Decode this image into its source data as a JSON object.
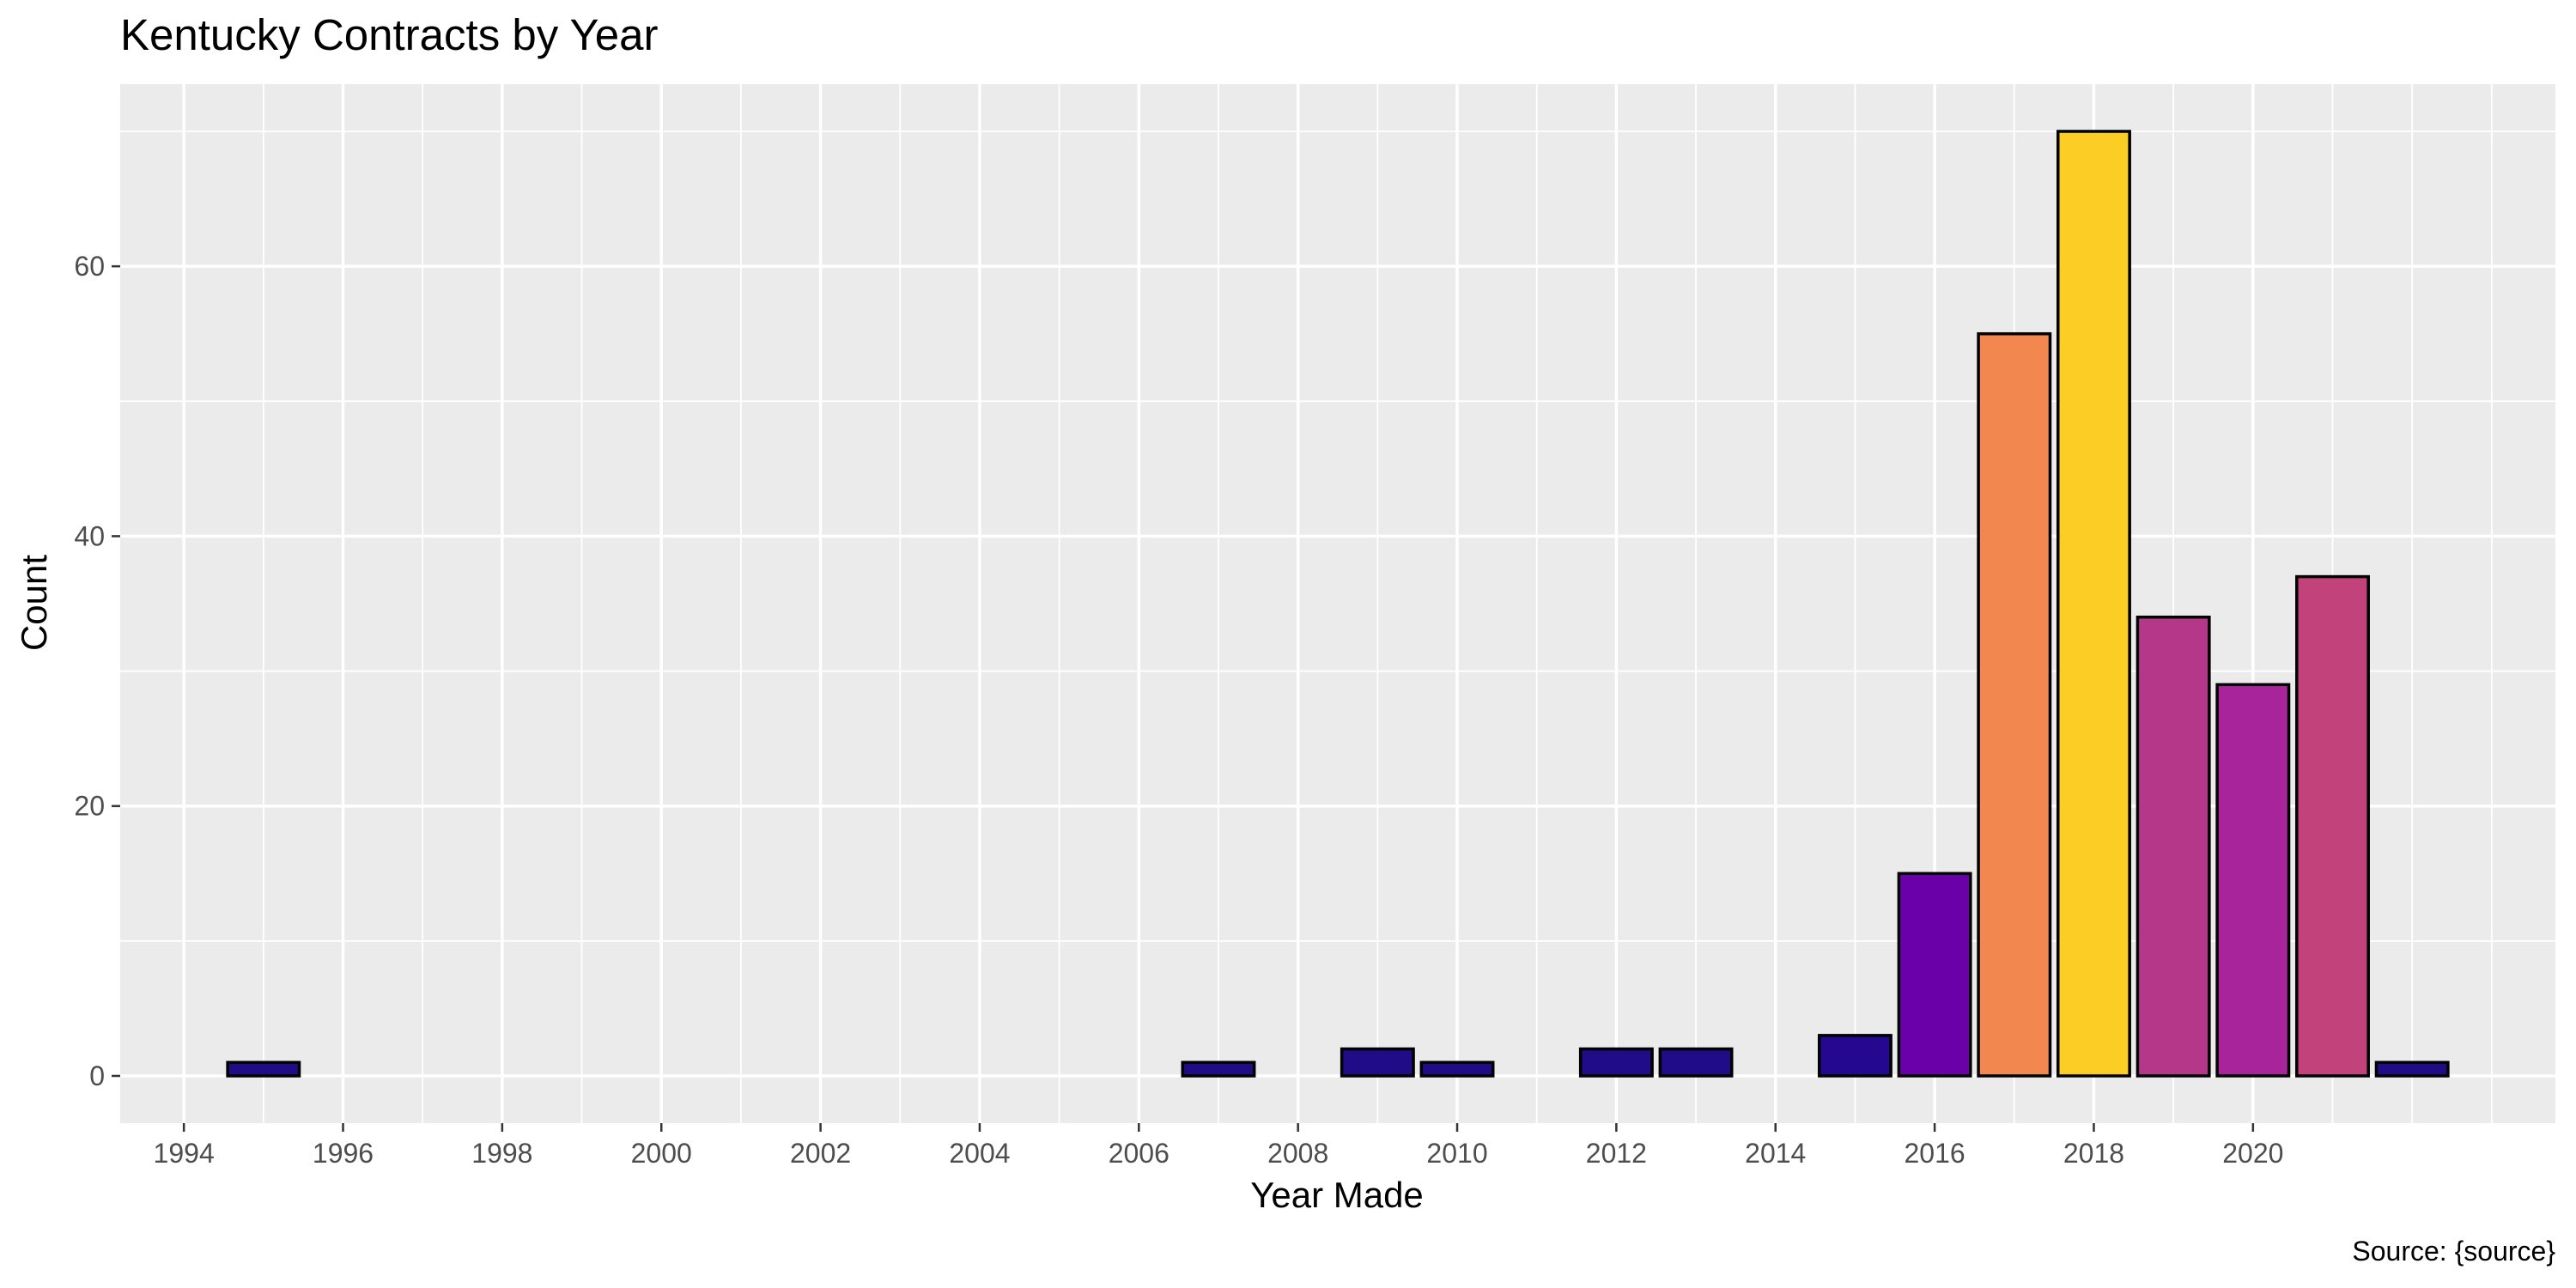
{
  "chart_data": {
    "type": "bar",
    "title": "Kentucky Contracts by Year",
    "xlabel": "Year Made",
    "ylabel": "Count",
    "caption": "Source: {source}",
    "x_ticks": [
      1994,
      1996,
      1998,
      2000,
      2002,
      2004,
      2006,
      2008,
      2010,
      2012,
      2014,
      2016,
      2018,
      2020
    ],
    "y_ticks": [
      0,
      20,
      40,
      60
    ],
    "xlim": [
      1993.2,
      2023.8
    ],
    "ylim": [
      -3.5,
      73.5
    ],
    "grid": true,
    "legend": "none",
    "bars": [
      {
        "x": 1995,
        "value": 1,
        "color": "#1f0c86"
      },
      {
        "x": 2007,
        "value": 1,
        "color": "#1f0c86"
      },
      {
        "x": 2009,
        "value": 2,
        "color": "#1f0c86"
      },
      {
        "x": 2010,
        "value": 1,
        "color": "#1f0c86"
      },
      {
        "x": 2012,
        "value": 2,
        "color": "#1f0c86"
      },
      {
        "x": 2013,
        "value": 2,
        "color": "#1f0c86"
      },
      {
        "x": 2015,
        "value": 3,
        "color": "#24088f"
      },
      {
        "x": 2016,
        "value": 15,
        "color": "#6a00a8"
      },
      {
        "x": 2017,
        "value": 55,
        "color": "#f2874f"
      },
      {
        "x": 2018,
        "value": 70,
        "color": "#fccd25"
      },
      {
        "x": 2019,
        "value": 34,
        "color": "#b5378a"
      },
      {
        "x": 2020,
        "value": 29,
        "color": "#a8249a"
      },
      {
        "x": 2021,
        "value": 37,
        "color": "#c2427c"
      },
      {
        "x": 2022,
        "value": 1,
        "color": "#1f0c86"
      }
    ]
  }
}
